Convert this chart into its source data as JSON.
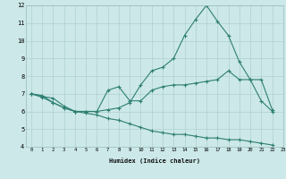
{
  "xlabel": "Humidex (Indice chaleur)",
  "bg_color": "#cce8e8",
  "grid_color": "#b0d0d0",
  "line_color": "#2e7f72",
  "xlim": [
    -0.5,
    23
  ],
  "ylim": [
    4,
    12
  ],
  "xticks": [
    0,
    1,
    2,
    3,
    4,
    5,
    6,
    7,
    8,
    9,
    10,
    11,
    12,
    13,
    14,
    15,
    16,
    17,
    18,
    19,
    20,
    21,
    22,
    23
  ],
  "yticks": [
    4,
    5,
    6,
    7,
    8,
    9,
    10,
    11,
    12
  ],
  "line1_x": [
    0,
    1,
    2,
    3,
    4,
    5,
    6,
    7,
    8,
    9,
    10,
    11,
    12,
    13,
    14,
    15,
    16,
    17,
    18,
    19,
    20,
    21,
    22
  ],
  "line1_y": [
    7.0,
    6.85,
    6.75,
    6.3,
    6.0,
    6.0,
    6.0,
    7.2,
    7.4,
    6.6,
    6.6,
    7.2,
    7.4,
    7.5,
    7.5,
    7.6,
    7.7,
    7.8,
    8.3,
    7.8,
    7.8,
    7.8,
    6.1
  ],
  "line2_x": [
    0,
    1,
    2,
    3,
    4,
    5,
    6,
    7,
    8,
    9,
    10,
    11,
    12,
    13,
    14,
    15,
    16,
    17,
    18,
    19,
    20,
    21,
    22
  ],
  "line2_y": [
    7.0,
    6.8,
    6.5,
    6.2,
    6.0,
    6.0,
    6.0,
    6.1,
    6.2,
    6.5,
    7.5,
    8.3,
    8.5,
    9.0,
    10.3,
    11.2,
    12.0,
    11.1,
    10.3,
    8.8,
    7.8,
    6.6,
    6.0
  ],
  "line3_x": [
    0,
    1,
    2,
    3,
    4,
    5,
    6,
    7,
    8,
    9,
    10,
    11,
    12,
    13,
    14,
    15,
    16,
    17,
    18,
    19,
    20,
    21,
    22
  ],
  "line3_y": [
    7.0,
    6.9,
    6.5,
    6.2,
    6.0,
    5.9,
    5.8,
    5.6,
    5.5,
    5.3,
    5.1,
    4.9,
    4.8,
    4.7,
    4.7,
    4.6,
    4.5,
    4.5,
    4.4,
    4.4,
    4.3,
    4.2,
    4.1
  ]
}
